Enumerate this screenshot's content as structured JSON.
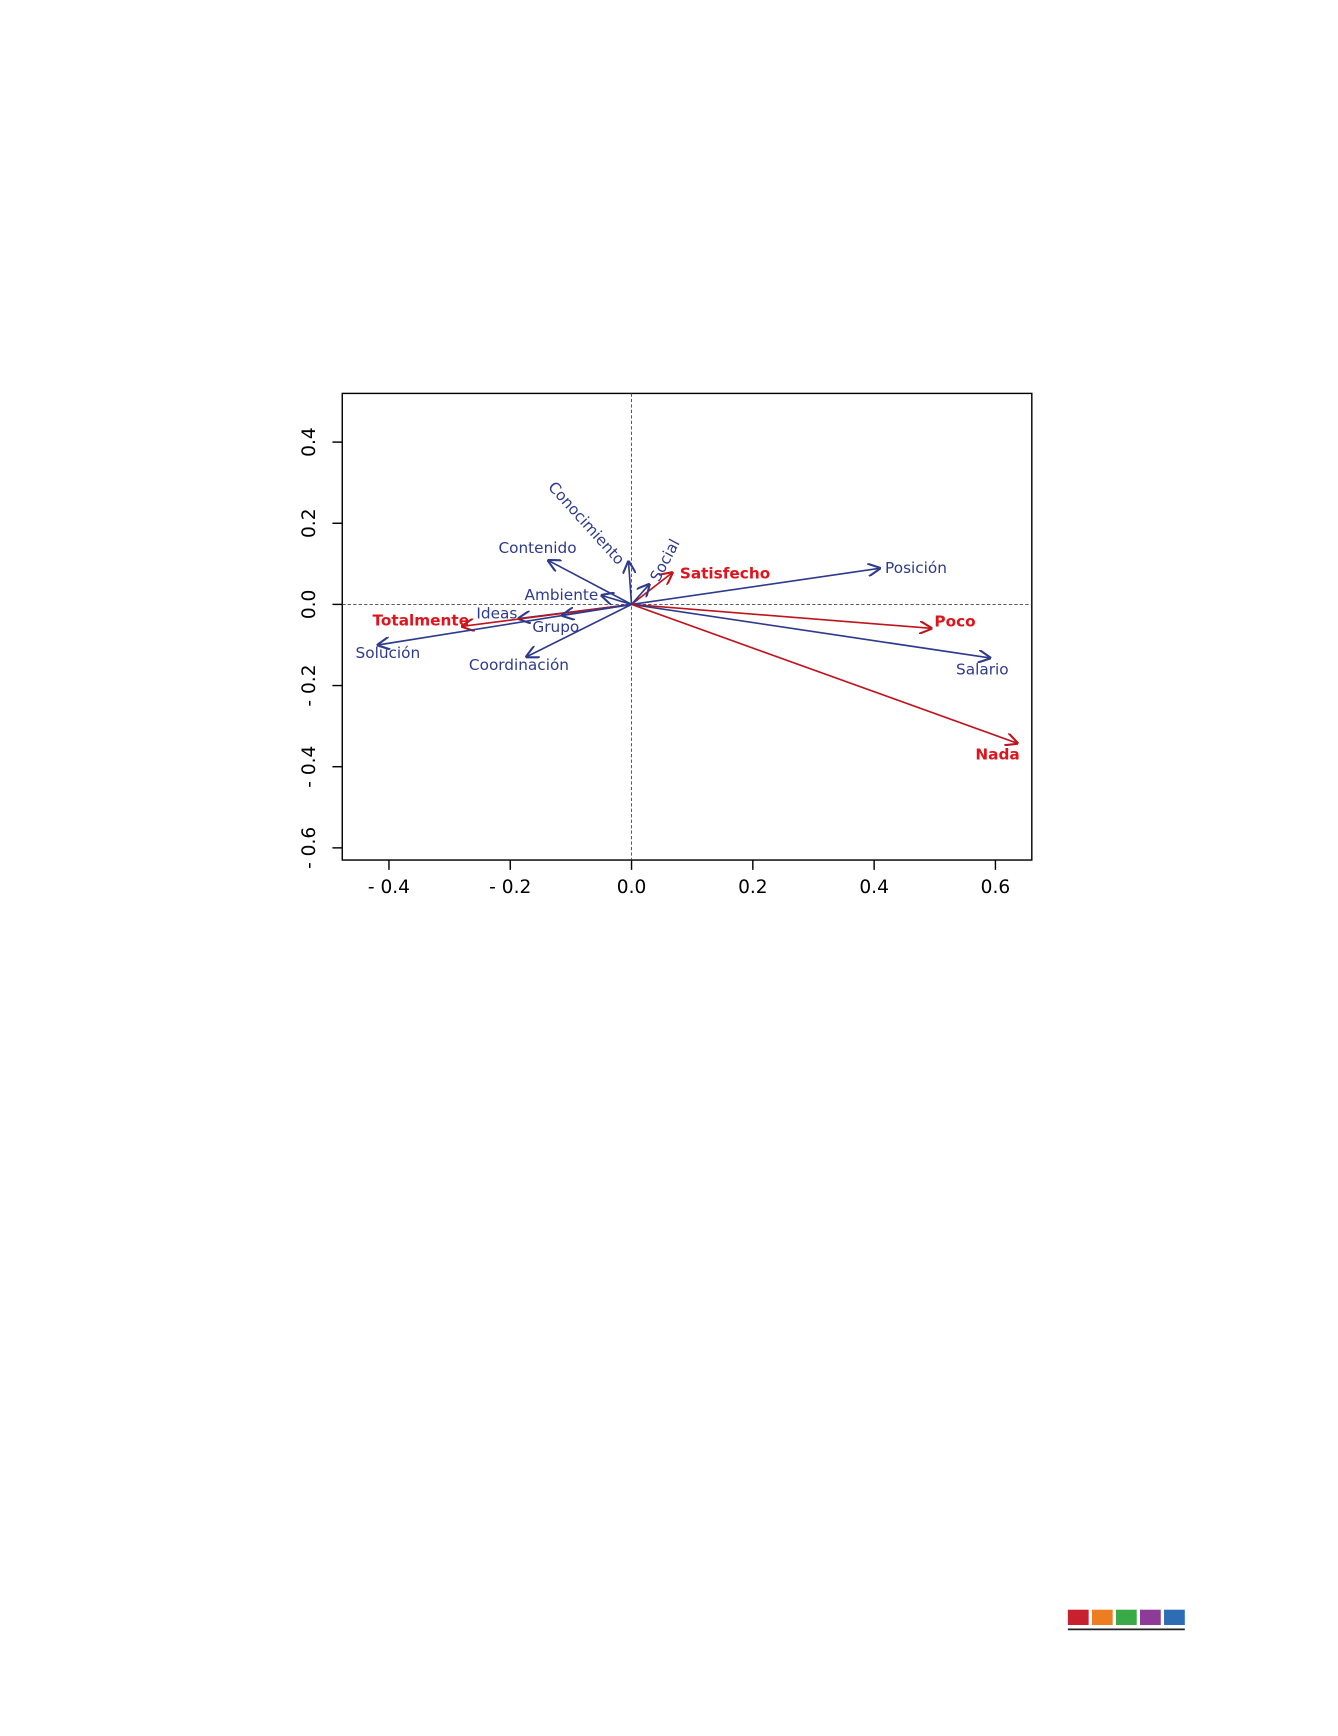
{
  "chart_data": {
    "type": "biplot",
    "xlim": [
      -0.477,
      0.66
    ],
    "ylim": [
      -0.63,
      0.52
    ],
    "xticks": [
      {
        "value": -0.4,
        "label": "- 0.4"
      },
      {
        "value": -0.2,
        "label": "- 0.2"
      },
      {
        "value": 0,
        "label": "0.0"
      },
      0.2,
      0.4,
      0.6
    ],
    "yticks": [
      {
        "value": -0.6,
        "label": "- 0.6"
      },
      {
        "value": -0.4,
        "label": "- 0.4"
      },
      {
        "value": -0.2,
        "label": "- 0.2"
      },
      {
        "value": 0,
        "label": "0.0"
      },
      0.2,
      0.4
    ],
    "vectors": [
      {
        "label": "Posición",
        "x": 0.409,
        "y": 0.089,
        "color": "#2e3a8c"
      },
      {
        "label": "Poco",
        "x": 0.494,
        "y": -0.059,
        "color": "#c0141c"
      },
      {
        "label": "Salario",
        "x": 0.591,
        "y": -0.132,
        "color": "#2e3a8c"
      },
      {
        "label": "Nada",
        "x": 0.636,
        "y": -0.342,
        "color": "#c0141c"
      },
      {
        "label": "Satisfecho",
        "x": 0.067,
        "y": 0.078,
        "color": "#c0141c"
      },
      {
        "label": "Social",
        "x": 0.029,
        "y": 0.049,
        "color": "#2e3a8c"
      },
      {
        "label": "Conocimiento",
        "x": -0.005,
        "y": 0.105,
        "color": "#2e3a8c"
      },
      {
        "label": "Contenido",
        "x": -0.137,
        "y": 0.108,
        "color": "#2e3a8c"
      },
      {
        "label": "Ambiente",
        "x": -0.049,
        "y": 0.022,
        "color": "#2e3a8c"
      },
      {
        "label": "Ideas",
        "x": -0.186,
        "y": -0.035,
        "color": "#2e3a8c"
      },
      {
        "label": "Totalmente",
        "x": -0.279,
        "y": -0.054,
        "color": "#c0141c"
      },
      {
        "label": "Grupo",
        "x": -0.114,
        "y": -0.027,
        "color": "#2e3a8c"
      },
      {
        "label": "Solución",
        "x": -0.418,
        "y": -0.1,
        "color": "#2e3a8c"
      },
      {
        "label": "Coordinación",
        "x": -0.173,
        "y": -0.129,
        "color": "#2e3a8c"
      }
    ]
  }
}
